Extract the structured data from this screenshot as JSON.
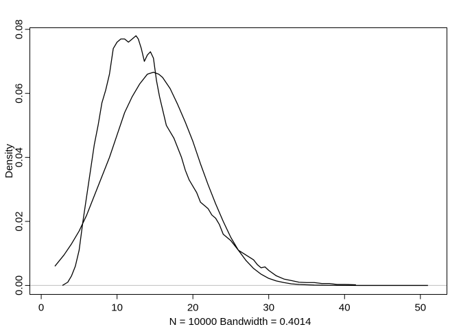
{
  "chart_data": {
    "type": "line",
    "title": "",
    "xlabel": "N = 10000   Bandwidth = 0.4014",
    "ylabel": "Density",
    "xlim": [
      -1.5,
      53.5
    ],
    "ylim": [
      -0.0028,
      0.0805
    ],
    "x_ticks": [
      0,
      10,
      20,
      30,
      40,
      50
    ],
    "y_ticks": [
      0.0,
      0.02,
      0.04,
      0.06,
      0.08
    ],
    "x_tick_labels": [
      "0",
      "10",
      "20",
      "30",
      "40",
      "50"
    ],
    "y_tick_labels": [
      "0.00",
      "0.02",
      "0.04",
      "0.06",
      "0.08"
    ],
    "zero_line_color": "#bebebe",
    "line_color": "#000000",
    "grid": false,
    "legend": "none",
    "series": [
      {
        "x": [
          2.8,
          3.5,
          4.0,
          4.5,
          5.0,
          5.5,
          6.0,
          6.5,
          7.0,
          7.5,
          8.0,
          8.5,
          9.0,
          9.5,
          10.0,
          10.5,
          11.0,
          11.5,
          12.0,
          12.5,
          12.8,
          13.2,
          13.6,
          14.0,
          14.4,
          14.8,
          15.2,
          15.6,
          16.0,
          16.5,
          17.0,
          17.5,
          18.0,
          18.5,
          19.0,
          19.5,
          20.0,
          20.5,
          21.0,
          21.5,
          22.0,
          22.5,
          23.0,
          23.5,
          24.0,
          25.0,
          26.0,
          27.0,
          28.0,
          28.5,
          29.0,
          29.5,
          30.0,
          31.0,
          32.0,
          33.0,
          34.0,
          35.0,
          36.0,
          37.0,
          38.0,
          39.0,
          40.0,
          41.5
        ],
        "y": [
          0.0,
          0.001,
          0.003,
          0.006,
          0.011,
          0.02,
          0.028,
          0.036,
          0.044,
          0.05,
          0.057,
          0.061,
          0.066,
          0.074,
          0.076,
          0.077,
          0.077,
          0.076,
          0.077,
          0.078,
          0.077,
          0.074,
          0.07,
          0.072,
          0.073,
          0.071,
          0.064,
          0.059,
          0.055,
          0.05,
          0.048,
          0.046,
          0.043,
          0.04,
          0.036,
          0.033,
          0.031,
          0.029,
          0.026,
          0.025,
          0.024,
          0.022,
          0.021,
          0.019,
          0.016,
          0.014,
          0.011,
          0.0095,
          0.008,
          0.0065,
          0.0055,
          0.0058,
          0.0047,
          0.003,
          0.002,
          0.0015,
          0.001,
          0.0009,
          0.0009,
          0.0006,
          0.0006,
          0.0003,
          0.0003,
          0.0002
        ]
      },
      {
        "x": [
          1.8,
          3,
          4,
          5,
          6,
          7,
          8,
          9,
          10,
          11,
          12,
          13,
          14,
          14.8,
          15.5,
          16,
          17,
          18,
          19,
          20,
          21,
          22,
          23,
          24,
          25,
          26,
          27,
          28,
          29,
          30,
          31,
          32,
          33,
          34,
          35,
          36,
          38,
          40,
          42,
          44,
          46,
          48,
          50,
          51
        ],
        "y": [
          0.006,
          0.0095,
          0.013,
          0.017,
          0.022,
          0.028,
          0.034,
          0.04,
          0.047,
          0.054,
          0.059,
          0.063,
          0.066,
          0.0666,
          0.066,
          0.065,
          0.0615,
          0.0565,
          0.051,
          0.045,
          0.038,
          0.0315,
          0.0255,
          0.02,
          0.015,
          0.011,
          0.0078,
          0.0053,
          0.0035,
          0.0022,
          0.0014,
          0.0009,
          0.0005,
          0.0003,
          0.0002,
          0.0001,
          4e-05,
          1e-05,
          0.0,
          0.0,
          0.0,
          0.0,
          0.0,
          0.0
        ]
      }
    ]
  }
}
